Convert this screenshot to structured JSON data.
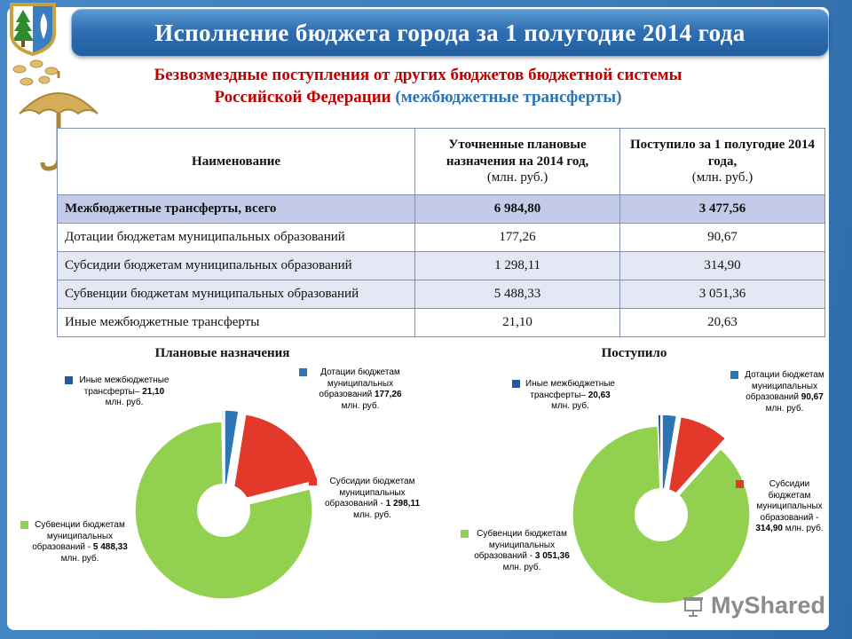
{
  "slide": {
    "title": "Исполнение бюджета города за 1 полугодие 2014 года",
    "subtitle": {
      "red": "Безвозмездные поступления от других бюджетов бюджетной системы Российской Федерации",
      "blue": "(межбюджетные трансферты)"
    },
    "colors": {
      "banner_blue": "#2f6fb2",
      "subtitle_red": "#c00000",
      "subtitle_blue": "#2e74b5",
      "total_row_bg": "#c3cbe9"
    }
  },
  "table": {
    "headers": [
      {
        "title": "Наименование",
        "unit": ""
      },
      {
        "title": "Уточненные плановые назначения на 2014 год,",
        "unit": "(млн. руб.)"
      },
      {
        "title": "Поступило за 1 полугодие 2014 года,",
        "unit": "(млн. руб.)"
      }
    ],
    "rows": [
      {
        "name": "Межбюджетные трансферты, всего",
        "plan": "6 984,80",
        "fact": "3 477,56",
        "bold": true
      },
      {
        "name": "Дотации бюджетам муниципальных образований",
        "plan": "177,26",
        "fact": "90,67",
        "bold": false
      },
      {
        "name": "Субсидии бюджетам муниципальных образований",
        "plan": "1 298,11",
        "fact": "314,90",
        "bold": false
      },
      {
        "name": "Субвенции бюджетам муниципальных образований",
        "plan": "5 488,33",
        "fact": "3 051,36",
        "bold": false
      },
      {
        "name": "Иные межбюджетные трансферты",
        "plan": "21,10",
        "fact": "20,63",
        "bold": false
      }
    ]
  },
  "chart_data": [
    {
      "type": "pie",
      "title": "Плановые назначения",
      "unit": "млн. руб.",
      "total": 6984.8,
      "slices": [
        {
          "name": "Дотации бюджетам муниципальных образований",
          "legend": "Дотации бюджетам муниципальных образований",
          "value": 177.26,
          "display": "177,26",
          "color": "#2e75b6",
          "explode": true
        },
        {
          "name": "Субсидии бюджетам муниципальных образований",
          "legend": "Субсидии бюджетам муниципальных образований -",
          "value": 1298.11,
          "display": "1 298,11",
          "color": "#e2392b",
          "explode": true
        },
        {
          "name": "Субвенции бюджетам муниципальных образований",
          "legend": "Субвенции бюджетам муниципальных образований -",
          "value": 5488.33,
          "display": "5 488,33",
          "color": "#92d04f",
          "explode": false
        },
        {
          "name": "Иные межбюджетные трансферты",
          "legend": "Иные межбюджетные трансферты–",
          "value": 21.1,
          "display": "21,10",
          "color": "#2458a6",
          "explode": true
        }
      ]
    },
    {
      "type": "pie",
      "title": "Поступило",
      "unit": "млн. руб.",
      "total": 3477.56,
      "slices": [
        {
          "name": "Дотации бюджетам муниципальных образований",
          "legend": "Дотации бюджетам муниципальных образований",
          "value": 90.67,
          "display": "90,67",
          "color": "#2e75b6",
          "explode": true
        },
        {
          "name": "Субсидии бюджетам муниципальных образований",
          "legend": "Субсидии бюджетам муниципальных образований -",
          "value": 314.9,
          "display": "314,90",
          "color": "#e2392b",
          "explode": true
        },
        {
          "name": "Субвенции бюджетам муниципальных образований",
          "legend": "Субвенции бюджетам муниципальных образований -",
          "value": 3051.36,
          "display": "3 051,36",
          "color": "#92d04f",
          "explode": false
        },
        {
          "name": "Иные межбюджетные трансферты",
          "legend": "Иные межбюджетные трансферты–",
          "value": 20.63,
          "display": "20,63",
          "color": "#2458a6",
          "explode": true
        }
      ]
    }
  ],
  "watermark": {
    "label": "MyShared"
  }
}
